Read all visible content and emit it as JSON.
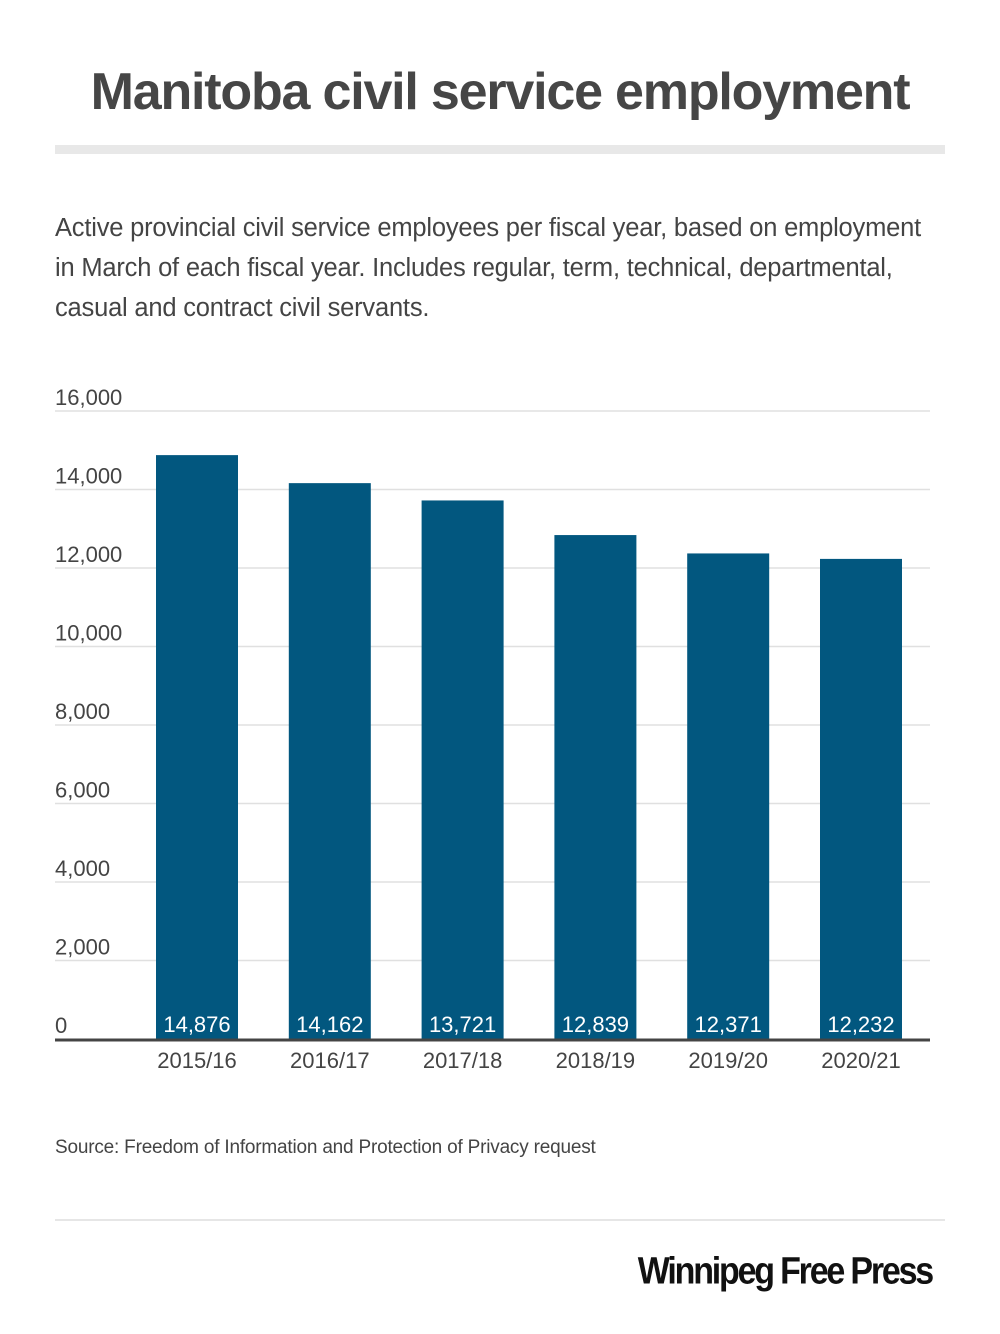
{
  "header": {
    "title": "Manitoba civil service employment",
    "subtitle": "Active provincial civil service employees per fiscal year, based on employment in March of each fiscal year.  Includes regular, term, technical, departmental, casual and contract civil servants."
  },
  "footer": {
    "source": "Source: Freedom of Information and Protection of Privacy request",
    "logo": "Winnipeg Free Press"
  },
  "colors": {
    "bar": "#02577f",
    "bar_label": "#ffffff",
    "grid": "#e0e0e0",
    "axis": "#444444",
    "text": "#444444"
  },
  "chart_data": {
    "type": "bar",
    "title": "Manitoba civil service employment",
    "xlabel": "",
    "ylabel": "",
    "categories": [
      "2015/16",
      "2016/17",
      "2017/18",
      "2018/19",
      "2019/20",
      "2020/21"
    ],
    "values": [
      14876,
      14162,
      13721,
      12839,
      12371,
      12232
    ],
    "value_labels": [
      "14,876",
      "14,162",
      "13,721",
      "12,839",
      "12,371",
      "12,232"
    ],
    "ylim": [
      0,
      16000
    ],
    "yticks": [
      0,
      2000,
      4000,
      6000,
      8000,
      10000,
      12000,
      14000,
      16000
    ],
    "ytick_labels": [
      "0",
      "2,000",
      "4,000",
      "6,000",
      "8,000",
      "10,000",
      "12,000",
      "14,000",
      "16,000"
    ],
    "grid": true,
    "legend": "none",
    "data_label_position": "inside-bottom"
  }
}
